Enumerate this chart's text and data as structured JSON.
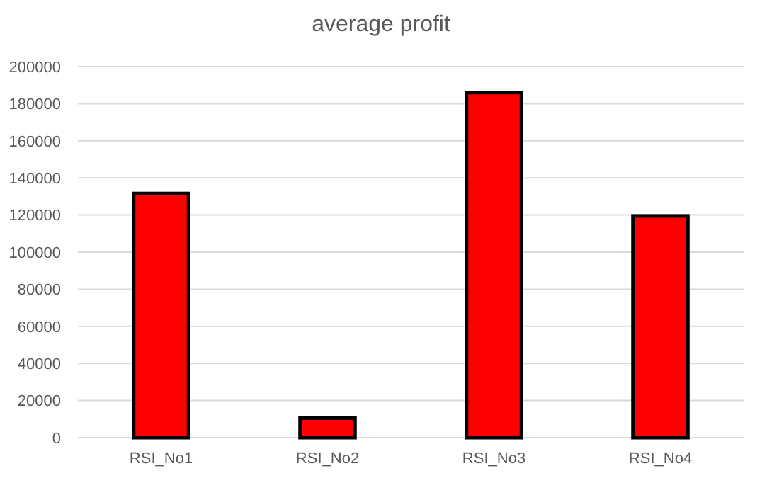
{
  "chart_data": {
    "type": "bar",
    "title": "average profit",
    "categories": [
      "RSI_No1",
      "RSI_No2",
      "RSI_No3",
      "RSI_No4"
    ],
    "values": [
      131600,
      10500,
      186000,
      119500
    ],
    "color": "#ff0000",
    "ylim": [
      0,
      200000
    ],
    "yticks": [
      0,
      20000,
      40000,
      60000,
      80000,
      100000,
      120000,
      140000,
      160000,
      180000,
      200000
    ],
    "grid": "y"
  }
}
